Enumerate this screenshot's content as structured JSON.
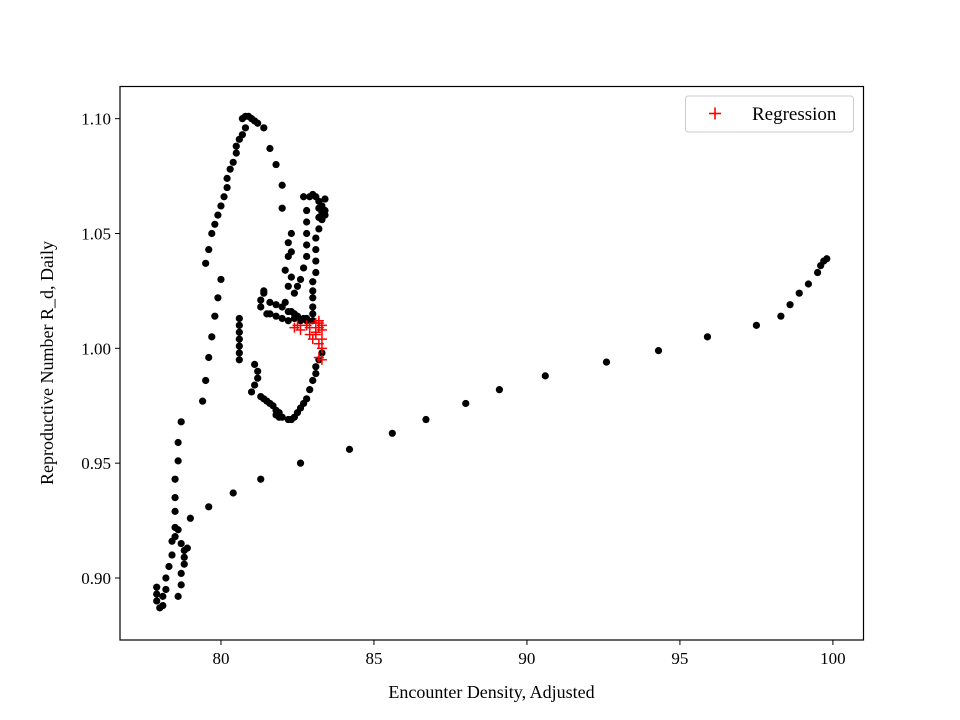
{
  "chart_data": {
    "type": "scatter",
    "title": "",
    "xlabel": "Encounter Density, Adjusted",
    "ylabel": "Reproductive Number R_d, Daily",
    "xlim": [
      76.7,
      101.0
    ],
    "ylim": [
      0.873,
      1.114
    ],
    "x_ticks": [
      80,
      85,
      90,
      95,
      100
    ],
    "x_tick_labels": [
      "80",
      "85",
      "90",
      "95",
      "100"
    ],
    "y_ticks": [
      0.9,
      0.95,
      1.0,
      1.05,
      1.1
    ],
    "y_tick_labels": [
      "0.90",
      "0.95",
      "1.00",
      "1.05",
      "1.10"
    ],
    "grid": false,
    "legend_position": "top-right",
    "series": [
      {
        "marker": "dot",
        "color": "#000000",
        "points": [
          [
            77.9,
            0.89
          ],
          [
            77.9,
            0.893
          ],
          [
            77.9,
            0.896
          ],
          [
            78.0,
            0.887
          ],
          [
            78.1,
            0.888
          ],
          [
            78.1,
            0.892
          ],
          [
            78.2,
            0.895
          ],
          [
            78.2,
            0.9
          ],
          [
            78.3,
            0.905
          ],
          [
            78.4,
            0.91
          ],
          [
            78.4,
            0.916
          ],
          [
            78.5,
            0.918
          ],
          [
            78.5,
            0.922
          ],
          [
            78.6,
            0.921
          ],
          [
            78.5,
            0.929
          ],
          [
            78.5,
            0.935
          ],
          [
            78.5,
            0.943
          ],
          [
            78.6,
            0.951
          ],
          [
            78.6,
            0.959
          ],
          [
            78.7,
            0.968
          ],
          [
            78.6,
            0.892
          ],
          [
            78.7,
            0.897
          ],
          [
            78.7,
            0.902
          ],
          [
            78.8,
            0.906
          ],
          [
            78.8,
            0.909
          ],
          [
            78.8,
            0.912
          ],
          [
            78.7,
            0.915
          ],
          [
            78.9,
            0.913
          ],
          [
            79.0,
            0.926
          ],
          [
            79.6,
            0.931
          ],
          [
            80.4,
            0.937
          ],
          [
            81.3,
            0.943
          ],
          [
            82.6,
            0.95
          ],
          [
            84.2,
            0.956
          ],
          [
            85.6,
            0.963
          ],
          [
            86.7,
            0.969
          ],
          [
            88.0,
            0.976
          ],
          [
            89.1,
            0.982
          ],
          [
            90.6,
            0.988
          ],
          [
            92.6,
            0.994
          ],
          [
            94.3,
            0.999
          ],
          [
            95.9,
            1.005
          ],
          [
            97.5,
            1.01
          ],
          [
            98.3,
            1.014
          ],
          [
            98.6,
            1.019
          ],
          [
            98.9,
            1.024
          ],
          [
            99.2,
            1.028
          ],
          [
            99.5,
            1.033
          ],
          [
            99.6,
            1.036
          ],
          [
            99.7,
            1.038
          ],
          [
            99.8,
            1.039
          ],
          [
            79.4,
            0.977
          ],
          [
            79.5,
            0.986
          ],
          [
            79.6,
            0.996
          ],
          [
            79.7,
            1.005
          ],
          [
            79.8,
            1.014
          ],
          [
            79.9,
            1.022
          ],
          [
            80.0,
            1.03
          ],
          [
            79.5,
            1.037
          ],
          [
            79.6,
            1.043
          ],
          [
            79.7,
            1.05
          ],
          [
            79.8,
            1.054
          ],
          [
            79.9,
            1.058
          ],
          [
            80.0,
            1.062
          ],
          [
            80.1,
            1.066
          ],
          [
            80.2,
            1.07
          ],
          [
            80.2,
            1.074
          ],
          [
            80.3,
            1.078
          ],
          [
            80.4,
            1.081
          ],
          [
            80.5,
            1.085
          ],
          [
            80.5,
            1.088
          ],
          [
            80.6,
            1.091
          ],
          [
            80.7,
            1.093
          ],
          [
            80.8,
            1.096
          ],
          [
            80.7,
            1.1
          ],
          [
            80.8,
            1.101
          ],
          [
            80.9,
            1.101
          ],
          [
            81.0,
            1.1
          ],
          [
            81.1,
            1.099
          ],
          [
            81.2,
            1.098
          ],
          [
            81.4,
            1.096
          ],
          [
            81.6,
            1.087
          ],
          [
            81.8,
            1.08
          ],
          [
            82.0,
            1.071
          ],
          [
            82.0,
            1.061
          ],
          [
            80.6,
            1.013
          ],
          [
            80.6,
            1.01
          ],
          [
            80.6,
            1.007
          ],
          [
            80.6,
            1.004
          ],
          [
            80.6,
            1.001
          ],
          [
            80.6,
            0.998
          ],
          [
            80.6,
            0.995
          ],
          [
            81.0,
            0.981
          ],
          [
            81.1,
            0.984
          ],
          [
            81.2,
            0.987
          ],
          [
            81.2,
            0.99
          ],
          [
            81.1,
            0.993
          ],
          [
            81.3,
            0.979
          ],
          [
            81.4,
            0.978
          ],
          [
            81.5,
            0.977
          ],
          [
            81.6,
            0.976
          ],
          [
            81.7,
            0.975
          ],
          [
            81.8,
            0.973
          ],
          [
            81.8,
            0.971
          ],
          [
            81.9,
            0.972
          ],
          [
            81.9,
            0.97
          ],
          [
            82.0,
            0.97
          ],
          [
            82.2,
            0.969
          ],
          [
            82.3,
            0.969
          ],
          [
            82.4,
            0.97
          ],
          [
            82.5,
            0.972
          ],
          [
            82.6,
            0.974
          ],
          [
            82.7,
            0.976
          ],
          [
            82.8,
            0.978
          ],
          [
            82.9,
            0.982
          ],
          [
            83.0,
            0.986
          ],
          [
            83.1,
            0.989
          ],
          [
            83.1,
            0.992
          ],
          [
            83.2,
            0.995
          ],
          [
            83.3,
            0.998
          ],
          [
            81.3,
            1.018
          ],
          [
            81.3,
            1.021
          ],
          [
            81.4,
            1.024
          ],
          [
            81.4,
            1.025
          ],
          [
            81.5,
            1.015
          ],
          [
            81.6,
            1.015
          ],
          [
            81.8,
            1.014
          ],
          [
            82.0,
            1.013
          ],
          [
            82.2,
            1.012
          ],
          [
            82.4,
            1.013
          ],
          [
            82.6,
            1.012
          ],
          [
            82.8,
            1.012
          ],
          [
            81.6,
            1.02
          ],
          [
            81.8,
            1.019
          ],
          [
            82.0,
            1.018
          ],
          [
            82.1,
            1.02
          ],
          [
            82.2,
            1.016
          ],
          [
            82.3,
            1.016
          ],
          [
            82.4,
            1.015
          ],
          [
            82.5,
            1.014
          ],
          [
            82.7,
            1.013
          ],
          [
            82.8,
            1.013
          ],
          [
            83.0,
            1.012
          ],
          [
            82.2,
            1.027
          ],
          [
            82.3,
            1.031
          ],
          [
            82.1,
            1.034
          ],
          [
            82.2,
            1.04
          ],
          [
            82.3,
            1.042
          ],
          [
            82.2,
            1.046
          ],
          [
            82.3,
            1.05
          ],
          [
            82.4,
            1.024
          ],
          [
            82.5,
            1.027
          ],
          [
            82.6,
            1.03
          ],
          [
            82.7,
            1.035
          ],
          [
            82.8,
            1.04
          ],
          [
            82.8,
            1.045
          ],
          [
            82.8,
            1.05
          ],
          [
            82.8,
            1.055
          ],
          [
            82.8,
            1.06
          ],
          [
            82.7,
            1.066
          ],
          [
            82.9,
            1.066
          ],
          [
            83.0,
            1.067
          ],
          [
            83.1,
            1.066
          ],
          [
            83.2,
            1.064
          ],
          [
            83.3,
            1.062
          ],
          [
            83.4,
            1.065
          ],
          [
            83.4,
            1.06
          ],
          [
            83.3,
            1.056
          ],
          [
            83.2,
            1.052
          ],
          [
            83.1,
            1.048
          ],
          [
            83.1,
            1.043
          ],
          [
            83.1,
            1.038
          ],
          [
            83.1,
            1.033
          ],
          [
            83.0,
            1.029
          ],
          [
            83.0,
            1.025
          ],
          [
            83.0,
            1.022
          ],
          [
            83.0,
            1.018
          ],
          [
            83.0,
            1.015
          ],
          [
            83.2,
            1.057
          ],
          [
            83.3,
            1.059
          ],
          [
            83.2,
            1.061
          ],
          [
            83.4,
            1.058
          ]
        ]
      },
      {
        "name": "Regression",
        "marker": "plus",
        "color": "#ff0000",
        "points": [
          [
            82.4,
            1.009
          ],
          [
            82.5,
            1.01
          ],
          [
            82.6,
            1.008
          ],
          [
            82.8,
            1.01
          ],
          [
            82.9,
            1.006
          ],
          [
            82.9,
            1.009
          ],
          [
            83.0,
            1.004
          ],
          [
            83.1,
            1.007
          ],
          [
            83.1,
            1.011
          ],
          [
            83.2,
            1.002
          ],
          [
            83.2,
            1.009
          ],
          [
            83.2,
            1.012
          ],
          [
            83.3,
            1.0
          ],
          [
            83.3,
            1.004
          ],
          [
            83.3,
            1.008
          ],
          [
            83.3,
            1.01
          ],
          [
            83.2,
            0.996
          ],
          [
            83.3,
            0.995
          ],
          [
            83.1,
            1.006
          ],
          [
            83.2,
            1.011
          ]
        ]
      }
    ]
  }
}
